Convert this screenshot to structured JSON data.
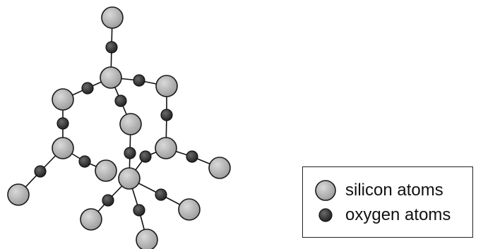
{
  "legend": {
    "silicon_label": "silicon atoms",
    "oxygen_label": "oxygen atoms"
  },
  "colors": {
    "silicon_fill": "#b3b3b3",
    "oxygen_fill": "#333333",
    "bond": "#111111"
  }
}
